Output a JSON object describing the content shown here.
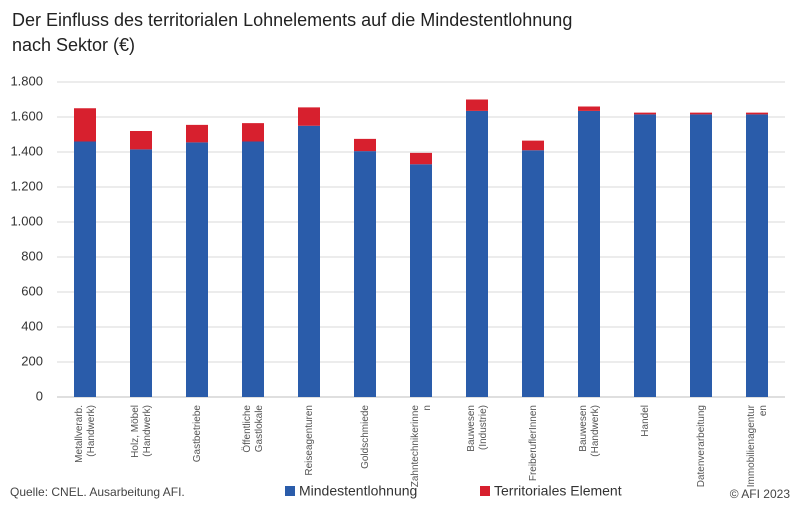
{
  "chart_data": {
    "type": "stacked_bar",
    "title": [
      "Der Einfluss des territorialen Lohnelements auf die Mindestentlohnung",
      "nach Sektor (€)"
    ],
    "categories": [
      "Metallverarb.\n(Handwerk)",
      "Holz, Möbel\n(Handwerk)",
      "Gastbetriebe",
      "Öffentliche\nGastlokale",
      "Reiseagenturen",
      "Goldschmiede",
      "Zahntechnikerinne\nn",
      "Bauwesen\n(Industrie)",
      "FreiberuflerInnen",
      "Bauwesen\n(Handwerk)",
      "Handel",
      "Datenverarbeitung",
      "Immobilienagentur\nen"
    ],
    "series": [
      {
        "name": "Mindestentlohnung",
        "color": "#2a5caa",
        "values": [
          1460,
          1415,
          1455,
          1460,
          1550,
          1405,
          1330,
          1635,
          1410,
          1635,
          1615,
          1615,
          1615
        ]
      },
      {
        "name": "Territoriales Element",
        "color": "#d7202e",
        "values": [
          190,
          105,
          100,
          105,
          105,
          70,
          65,
          65,
          55,
          25,
          10,
          10,
          10
        ]
      }
    ],
    "ylim": [
      0,
      1800
    ],
    "yticks": [
      0,
      200,
      400,
      600,
      800,
      {
        "value": 1000,
        "label": "1.000"
      },
      {
        "value": 1200,
        "label": "1.200"
      },
      {
        "value": 1400,
        "label": "1.400"
      },
      {
        "value": 1600,
        "label": "1.600"
      },
      {
        "value": 1800,
        "label": "1.800"
      }
    ],
    "grid": true,
    "source": "Quelle: CNEL. Ausarbeitung AFI.",
    "copyright": "© AFI 2023"
  }
}
